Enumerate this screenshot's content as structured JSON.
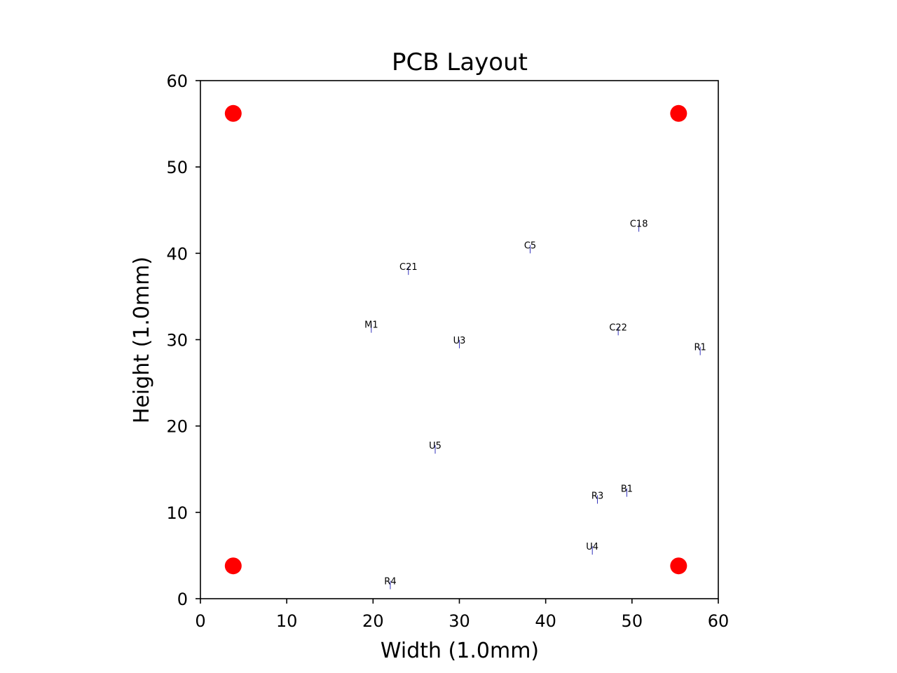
{
  "chart_data": {
    "type": "scatter",
    "title": "PCB Layout",
    "xlabel": "Width (1.0mm)",
    "ylabel": "Height (1.0mm)",
    "xlim": [
      0,
      60
    ],
    "ylim": [
      0,
      60
    ],
    "xticks": [
      "0",
      "10",
      "20",
      "30",
      "40",
      "50",
      "60"
    ],
    "yticks": [
      "0",
      "10",
      "20",
      "30",
      "40",
      "50",
      "60"
    ],
    "grid": false,
    "mounting_hole_color": "#ff0000",
    "component_color": "#0000aa",
    "mounting_holes": [
      {
        "x": 3.8,
        "y": 56.2
      },
      {
        "x": 55.4,
        "y": 56.2
      },
      {
        "x": 3.8,
        "y": 3.8
      },
      {
        "x": 55.4,
        "y": 3.8
      }
    ],
    "components": [
      {
        "name": "C18",
        "x": 50.8,
        "y": 42.5
      },
      {
        "name": "C5",
        "x": 38.2,
        "y": 40.0
      },
      {
        "name": "C21",
        "x": 24.1,
        "y": 37.5
      },
      {
        "name": "M1",
        "x": 19.8,
        "y": 30.8
      },
      {
        "name": "U3",
        "x": 30.0,
        "y": 29.0
      },
      {
        "name": "C22",
        "x": 48.4,
        "y": 30.5
      },
      {
        "name": "R1",
        "x": 57.9,
        "y": 28.2
      },
      {
        "name": "U5",
        "x": 27.2,
        "y": 16.8
      },
      {
        "name": "B1",
        "x": 49.4,
        "y": 11.8
      },
      {
        "name": "R3",
        "x": 46.0,
        "y": 11.0
      },
      {
        "name": "U4",
        "x": 45.4,
        "y": 5.1
      },
      {
        "name": "R4",
        "x": 22.0,
        "y": 1.1
      }
    ]
  }
}
